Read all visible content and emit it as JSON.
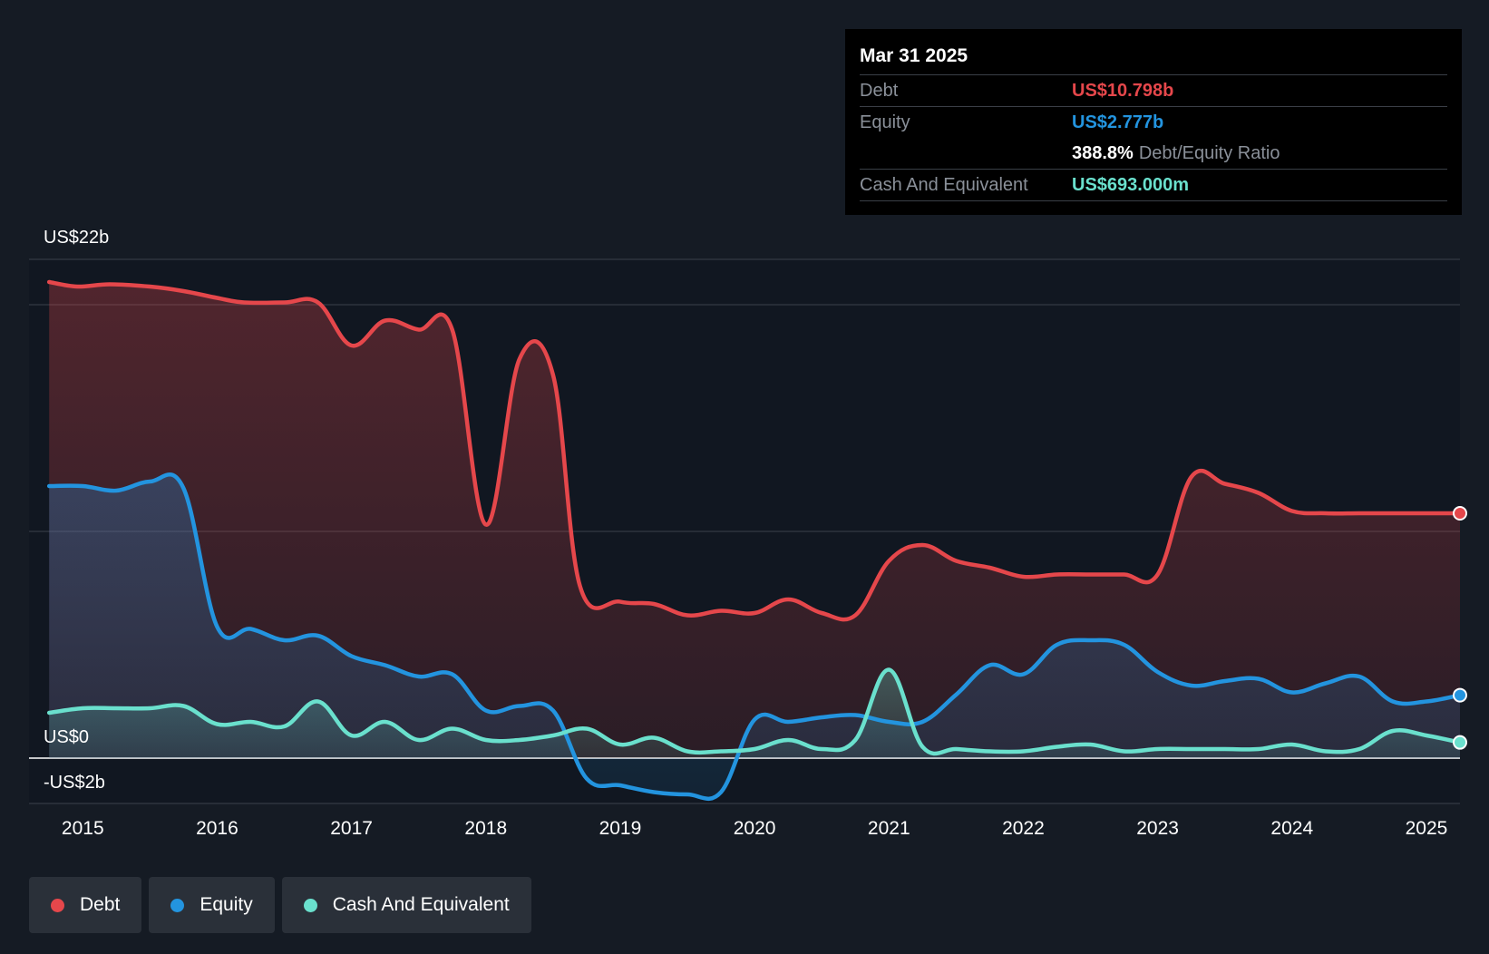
{
  "tooltip": {
    "date": "Mar 31 2025",
    "debt_label": "Debt",
    "debt_value": "US$10.798b",
    "equity_label": "Equity",
    "equity_value": "US$2.777b",
    "ratio_value": "388.8%",
    "ratio_label": "Debt/Equity Ratio",
    "cash_label": "Cash And Equivalent",
    "cash_value": "US$693.000m"
  },
  "legend": [
    {
      "label": "Debt",
      "color": "#e5474b"
    },
    {
      "label": "Equity",
      "color": "#2394df"
    },
    {
      "label": "Cash And Equivalent",
      "color": "#6ae0cd"
    }
  ],
  "chart_data": {
    "type": "area",
    "y_tick_labels": {
      "top": "US$22b",
      "zero": "US$0",
      "bottom": "-US$2b"
    },
    "ylim": [
      -2,
      22
    ],
    "grid": true,
    "legend_position": "bottom-left",
    "x_ticks": [
      "2015",
      "2016",
      "2017",
      "2018",
      "2019",
      "2020",
      "2021",
      "2022",
      "2023",
      "2024",
      "2025"
    ],
    "x_range": [
      2014.6,
      2025.25
    ],
    "series": [
      {
        "name": "Debt",
        "color": "#e5474b",
        "x": [
          2014.75,
          2014.96,
          2015.2,
          2015.5,
          2015.75,
          2016.0,
          2016.2,
          2016.5,
          2016.75,
          2017.0,
          2017.25,
          2017.5,
          2017.75,
          2018.0,
          2018.25,
          2018.5,
          2018.7,
          2019.0,
          2019.25,
          2019.5,
          2019.75,
          2020.0,
          2020.25,
          2020.5,
          2020.75,
          2021.0,
          2021.25,
          2021.5,
          2021.75,
          2022.0,
          2022.25,
          2022.5,
          2022.75,
          2023.0,
          2023.25,
          2023.5,
          2023.75,
          2024.0,
          2024.25,
          2024.5,
          2024.75,
          2025.0,
          2025.25
        ],
        "values": [
          21.0,
          20.8,
          20.9,
          20.8,
          20.6,
          20.3,
          20.1,
          20.1,
          20.1,
          18.2,
          19.3,
          18.9,
          18.9,
          10.3,
          17.6,
          16.9,
          7.6,
          6.9,
          6.8,
          6.3,
          6.5,
          6.4,
          7.0,
          6.4,
          6.3,
          8.7,
          9.4,
          8.7,
          8.4,
          8.0,
          8.1,
          8.1,
          8.1,
          8.1,
          12.4,
          12.1,
          11.7,
          10.9,
          10.8,
          10.8,
          10.8,
          10.8,
          10.8
        ]
      },
      {
        "name": "Equity",
        "color": "#2394df",
        "x": [
          2014.75,
          2015.0,
          2015.25,
          2015.5,
          2015.75,
          2016.0,
          2016.25,
          2016.5,
          2016.75,
          2017.0,
          2017.25,
          2017.5,
          2017.75,
          2018.0,
          2018.25,
          2018.5,
          2018.75,
          2019.0,
          2019.25,
          2019.5,
          2019.75,
          2020.0,
          2020.25,
          2020.5,
          2020.75,
          2021.0,
          2021.25,
          2021.5,
          2021.75,
          2022.0,
          2022.25,
          2022.5,
          2022.75,
          2023.0,
          2023.25,
          2023.5,
          2023.75,
          2024.0,
          2024.25,
          2024.5,
          2024.75,
          2025.0,
          2025.25
        ],
        "values": [
          12.0,
          12.0,
          11.8,
          12.2,
          11.9,
          5.8,
          5.7,
          5.2,
          5.4,
          4.5,
          4.1,
          3.6,
          3.7,
          2.1,
          2.3,
          2.1,
          -0.9,
          -1.2,
          -1.5,
          -1.6,
          -1.5,
          1.7,
          1.6,
          1.8,
          1.9,
          1.6,
          1.6,
          2.8,
          4.1,
          3.7,
          5.0,
          5.2,
          5.0,
          3.8,
          3.2,
          3.4,
          3.5,
          2.9,
          3.3,
          3.6,
          2.5,
          2.5,
          2.777
        ]
      },
      {
        "name": "Cash And Equivalent",
        "color": "#6ae0cd",
        "x": [
          2014.75,
          2015.0,
          2015.25,
          2015.5,
          2015.75,
          2016.0,
          2016.25,
          2016.5,
          2016.75,
          2017.0,
          2017.25,
          2017.5,
          2017.75,
          2018.0,
          2018.25,
          2018.5,
          2018.75,
          2019.0,
          2019.25,
          2019.5,
          2019.75,
          2020.0,
          2020.25,
          2020.5,
          2020.75,
          2021.0,
          2021.25,
          2021.5,
          2021.75,
          2022.0,
          2022.25,
          2022.5,
          2022.75,
          2023.0,
          2023.25,
          2023.5,
          2023.75,
          2024.0,
          2024.25,
          2024.5,
          2024.75,
          2025.0,
          2025.25
        ],
        "values": [
          2.0,
          2.2,
          2.2,
          2.2,
          2.3,
          1.5,
          1.6,
          1.4,
          2.5,
          1.0,
          1.6,
          0.8,
          1.3,
          0.8,
          0.8,
          1.0,
          1.3,
          0.6,
          0.9,
          0.3,
          0.3,
          0.4,
          0.8,
          0.4,
          0.8,
          3.9,
          0.5,
          0.4,
          0.3,
          0.3,
          0.5,
          0.6,
          0.3,
          0.4,
          0.4,
          0.4,
          0.4,
          0.6,
          0.3,
          0.4,
          1.2,
          1.0,
          0.693
        ]
      }
    ]
  }
}
